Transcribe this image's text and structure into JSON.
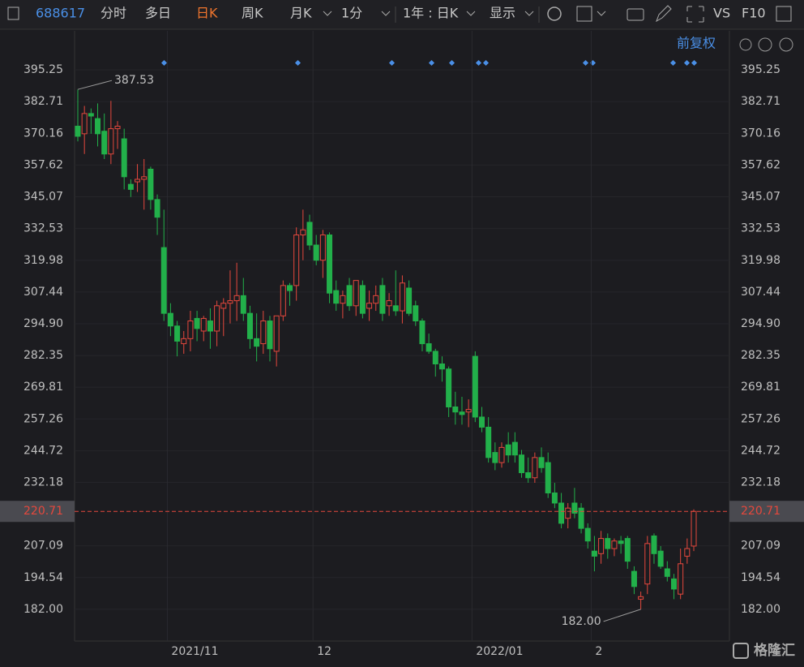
{
  "toolbar": {
    "code": "688617",
    "tabs": [
      "分时",
      "多日",
      "日K",
      "周K",
      "月K",
      "1分"
    ],
    "period": "1年 : 日K",
    "display": "显示",
    "vs": "VS",
    "f10": "F10",
    "adjust": "前复权"
  },
  "watermark": "格隆汇",
  "chart_data": {
    "type": "candlestick",
    "categories": [
      null,
      null,
      null,
      null,
      null,
      null,
      null,
      null,
      null,
      null,
      null,
      null,
      null,
      null,
      "2021/11",
      null,
      null,
      null,
      null,
      null,
      null,
      null,
      null,
      null,
      null,
      null,
      null,
      null,
      null,
      null,
      null,
      null,
      null,
      null,
      null,
      null,
      "12",
      null,
      null,
      null,
      null,
      null,
      null,
      null,
      null,
      null,
      null,
      null,
      null,
      null,
      null,
      null,
      null,
      null,
      null,
      null,
      null,
      null,
      null,
      null,
      "2022/01",
      null,
      null,
      null,
      null,
      null,
      null,
      null,
      null,
      null,
      null,
      null,
      null,
      null,
      null,
      null,
      null,
      null,
      "2",
      null,
      null,
      null,
      null,
      null,
      null,
      null,
      null,
      null,
      null,
      null,
      null,
      null,
      null,
      null
    ],
    "open": [
      373,
      370,
      378,
      376,
      371,
      362,
      372,
      368,
      350,
      351,
      352,
      356,
      344,
      325,
      299,
      294,
      287,
      289,
      297,
      292,
      296,
      292,
      301,
      303,
      304,
      306,
      299,
      289,
      287,
      296,
      284,
      298,
      310,
      310,
      330,
      335,
      326,
      320,
      330,
      308,
      303,
      310,
      302,
      310,
      301,
      303,
      310,
      302,
      302,
      300,
      309,
      302,
      296,
      287,
      284,
      279,
      277,
      262,
      260,
      260,
      282,
      258,
      254,
      244,
      240,
      247,
      248,
      243,
      236,
      234,
      242,
      240,
      228,
      224,
      218,
      224,
      222,
      214,
      205,
      204,
      210,
      206,
      209,
      210,
      197,
      186,
      192,
      211,
      205,
      198,
      194,
      188,
      203,
      207
    ],
    "high": [
      387.53,
      381,
      380,
      382,
      378,
      383,
      375,
      372,
      352,
      358,
      360,
      357,
      346,
      340,
      303,
      296,
      292,
      300,
      300,
      298,
      301,
      304,
      305,
      316,
      319,
      313,
      302,
      299,
      300,
      298,
      298,
      312,
      311,
      333,
      340,
      338,
      330,
      332,
      331,
      312,
      308,
      313,
      312,
      312,
      308,
      310,
      313,
      307,
      316,
      314,
      312,
      304,
      297,
      291,
      285,
      282,
      278,
      268,
      266,
      265,
      284,
      262,
      258,
      248,
      248,
      252,
      252,
      245,
      242,
      244,
      246,
      244,
      232,
      228,
      224,
      230,
      224,
      216,
      211,
      213,
      212,
      210,
      211,
      211,
      199,
      189,
      211,
      212,
      207,
      201,
      196,
      206,
      210,
      221.5
    ],
    "low": [
      367,
      362,
      370,
      365,
      360,
      358,
      364,
      348,
      345,
      347,
      340,
      340,
      330,
      296,
      290,
      282,
      283,
      284,
      288,
      288,
      285,
      286,
      290,
      295,
      296,
      296,
      285,
      280,
      283,
      280,
      278,
      296,
      302,
      304,
      320,
      324,
      318,
      313,
      303,
      300,
      297,
      300,
      298,
      297,
      296,
      300,
      296,
      298,
      298,
      295,
      298,
      294,
      284,
      283,
      274,
      272,
      258,
      255,
      255,
      254,
      256,
      252,
      240,
      237,
      238,
      240,
      240,
      234,
      232,
      232,
      236,
      226,
      222,
      214,
      214,
      218,
      212,
      206,
      197,
      200,
      202,
      203,
      204,
      198,
      188,
      182,
      188,
      200,
      198,
      193,
      186,
      186,
      200,
      205
    ],
    "close": [
      369,
      378,
      377,
      370,
      362,
      372,
      373,
      353,
      348,
      352,
      353,
      344,
      337,
      299,
      294,
      288,
      289,
      296,
      293,
      297,
      292,
      302,
      303,
      304,
      306,
      299,
      289,
      286,
      296,
      285,
      298,
      310,
      308,
      330,
      332,
      326,
      320,
      330,
      307,
      303,
      306,
      302,
      312,
      299,
      303,
      306,
      299,
      304,
      300,
      311,
      299,
      296,
      287,
      284,
      279,
      277,
      262,
      260,
      259,
      261,
      258,
      254,
      242,
      240,
      246,
      243,
      243,
      236,
      234,
      242,
      238,
      228,
      224,
      216,
      222,
      220,
      214,
      209,
      203,
      210,
      206,
      209,
      208,
      201,
      191,
      187,
      208,
      204,
      199,
      195,
      190,
      200,
      206,
      220.71
    ],
    "up_color": "#e5483d",
    "down_color": "#22b04a",
    "ylim": [
      169.45,
      410.69
    ],
    "yticks": [
      395.25,
      382.71,
      370.16,
      357.62,
      345.07,
      332.53,
      319.98,
      307.44,
      {
        "value": 294.9,
        "label": "294.90"
      },
      282.35,
      269.81,
      257.26,
      244.72,
      232.18,
      207.09,
      194.54,
      {
        "value": 182,
        "label": "182.00"
      }
    ],
    "grid": true,
    "last_price": 220.71,
    "annotations": [
      {
        "value": 387.53,
        "label": "387.53"
      },
      {
        "value": 182,
        "label": "182.00"
      }
    ]
  }
}
